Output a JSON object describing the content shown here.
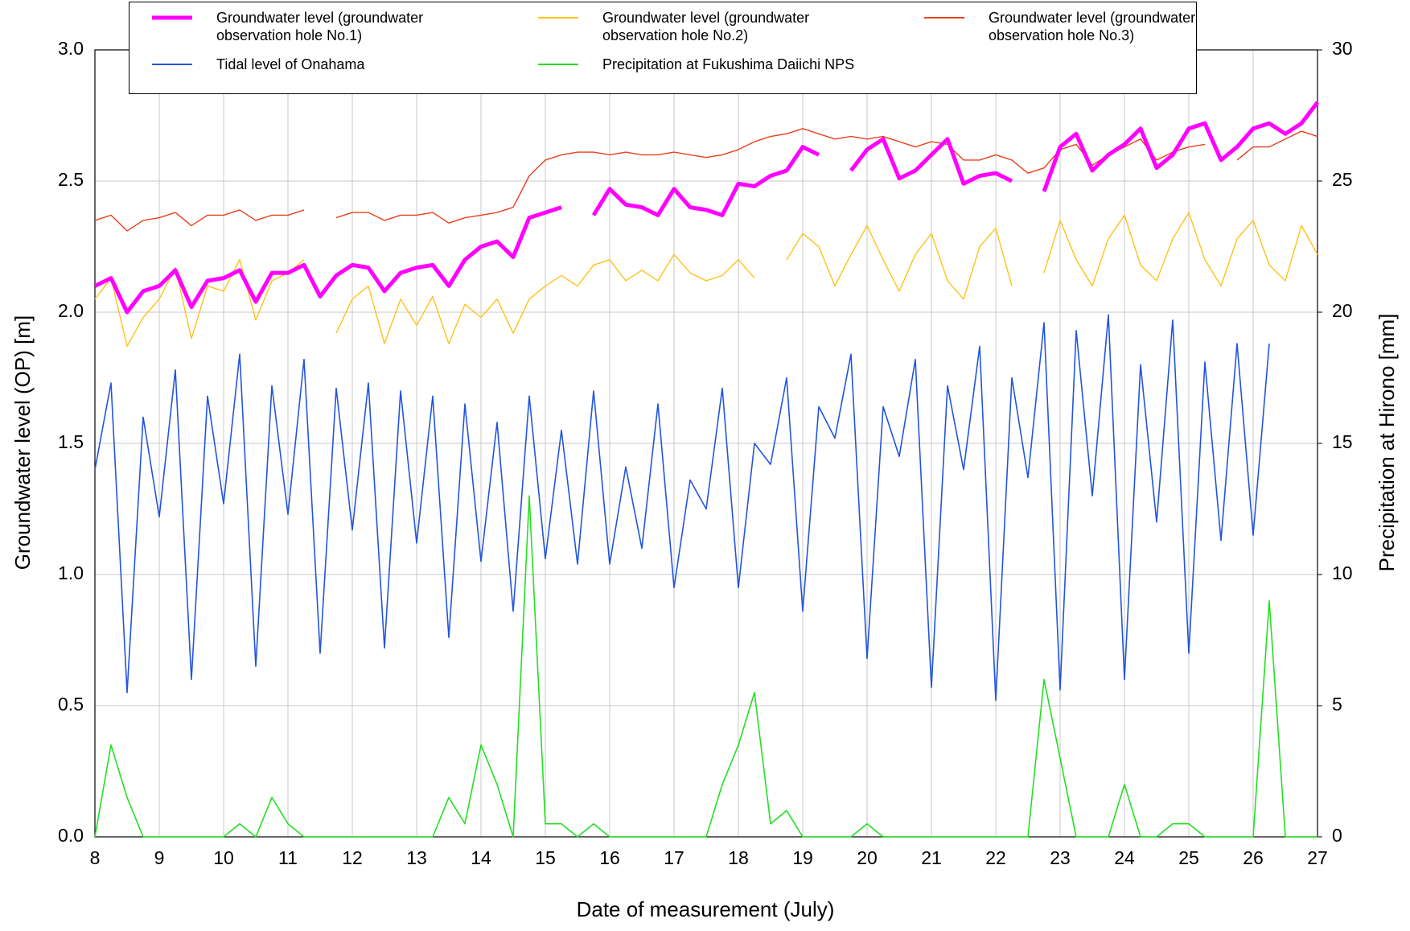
{
  "chart_data": {
    "type": "line",
    "x_label": "Date of measurement (July)",
    "y_label": "Groundwater level (OP) [m]",
    "y2_label": "Precipitation at Hirono [mm]",
    "xlim": [
      8,
      27
    ],
    "xticks": [
      8,
      9,
      10,
      11,
      12,
      13,
      14,
      15,
      16,
      17,
      18,
      19,
      20,
      21,
      22,
      23,
      24,
      25,
      26,
      27
    ],
    "ylim": [
      0,
      3
    ],
    "yticks": [
      {
        "value": 0,
        "label": "0.0"
      },
      0.5,
      {
        "value": 1,
        "label": "1.0"
      },
      1.5,
      {
        "value": 2,
        "label": "2.0"
      },
      2.5,
      {
        "value": 3,
        "label": "3.0"
      }
    ],
    "y2lim": [
      0,
      30
    ],
    "y2ticks": [
      0,
      5,
      10,
      15,
      20,
      25,
      30
    ],
    "grid": true,
    "x": [
      8,
      8.25,
      8.5,
      8.75,
      9,
      9.25,
      9.5,
      9.75,
      10,
      10.25,
      10.5,
      10.75,
      11,
      11.25,
      11.5,
      11.75,
      12,
      12.25,
      12.5,
      12.75,
      13,
      13.25,
      13.5,
      13.75,
      14,
      14.25,
      14.5,
      14.75,
      15,
      15.25,
      15.5,
      15.75,
      16,
      16.25,
      16.5,
      16.75,
      17,
      17.25,
      17.5,
      17.75,
      18,
      18.25,
      18.5,
      18.75,
      19,
      19.25,
      19.5,
      19.75,
      20,
      20.25,
      20.5,
      20.75,
      21,
      21.25,
      21.5,
      21.75,
      22,
      22.25,
      22.5,
      22.75,
      23,
      23.25,
      23.5,
      23.75,
      24,
      24.25,
      24.5,
      24.75,
      25,
      25.25,
      25.5,
      25.75,
      26,
      26.25,
      26.5,
      26.75,
      27
    ],
    "series": [
      {
        "name": "Groundwater level (groundwater observation hole No.1)",
        "color": "#ff00ff",
        "width": 5,
        "values": [
          2.1,
          2.13,
          2.0,
          2.08,
          2.1,
          2.16,
          2.02,
          2.12,
          2.13,
          2.16,
          2.04,
          2.15,
          2.15,
          2.18,
          2.06,
          2.14,
          2.18,
          2.17,
          2.08,
          2.15,
          2.17,
          2.18,
          2.1,
          2.2,
          2.25,
          2.27,
          2.21,
          2.36,
          2.38,
          2.4,
          null,
          2.37,
          2.47,
          2.41,
          2.4,
          2.37,
          2.47,
          2.4,
          2.39,
          2.37,
          2.49,
          2.48,
          2.52,
          2.54,
          2.63,
          2.6,
          null,
          2.54,
          2.62,
          2.66,
          2.51,
          2.54,
          2.6,
          2.66,
          2.49,
          2.52,
          2.53,
          2.5,
          null,
          2.46,
          2.63,
          2.68,
          2.54,
          2.6,
          2.64,
          2.7,
          2.55,
          2.6,
          2.7,
          2.72,
          2.58,
          2.63,
          2.7,
          2.72,
          2.68,
          2.72,
          2.8
        ]
      },
      {
        "name": "Groundwater level (groundwater observation hole No.2)",
        "color": "#ffc21a",
        "width": 1.4,
        "values": [
          2.05,
          2.13,
          1.87,
          1.98,
          2.05,
          2.17,
          1.9,
          2.1,
          2.08,
          2.2,
          1.97,
          2.12,
          2.15,
          2.2,
          null,
          1.92,
          2.05,
          2.1,
          1.88,
          2.05,
          1.95,
          2.06,
          1.88,
          2.03,
          1.98,
          2.05,
          1.92,
          2.05,
          2.1,
          2.14,
          2.1,
          2.18,
          2.2,
          2.12,
          2.16,
          2.12,
          2.22,
          2.15,
          2.12,
          2.14,
          2.2,
          2.13,
          null,
          2.2,
          2.3,
          2.25,
          2.1,
          2.22,
          2.33,
          2.2,
          2.08,
          2.22,
          2.3,
          2.12,
          2.05,
          2.25,
          2.32,
          2.1,
          null,
          2.15,
          2.35,
          2.2,
          2.1,
          2.28,
          2.37,
          2.18,
          2.12,
          2.28,
          2.38,
          2.2,
          2.1,
          2.28,
          2.35,
          2.18,
          2.12,
          2.33,
          2.22
        ]
      },
      {
        "name": "Groundwater level (groundwater observation hole No.3)",
        "color": "#e8401c",
        "width": 1.4,
        "values": [
          2.35,
          2.37,
          2.31,
          2.35,
          2.36,
          2.38,
          2.33,
          2.37,
          2.37,
          2.39,
          2.35,
          2.37,
          2.37,
          2.39,
          null,
          2.36,
          2.38,
          2.38,
          2.35,
          2.37,
          2.37,
          2.38,
          2.34,
          2.36,
          2.37,
          2.38,
          2.4,
          2.52,
          2.58,
          2.6,
          2.61,
          2.61,
          2.6,
          2.61,
          2.6,
          2.6,
          2.61,
          2.6,
          2.59,
          2.6,
          2.62,
          2.65,
          2.67,
          2.68,
          2.7,
          2.68,
          2.66,
          2.67,
          2.66,
          2.67,
          2.65,
          2.63,
          2.65,
          2.64,
          2.58,
          2.58,
          2.6,
          2.58,
          2.53,
          2.55,
          2.62,
          2.64,
          2.56,
          2.6,
          2.63,
          2.66,
          2.58,
          2.61,
          2.63,
          2.64,
          null,
          2.58,
          2.63,
          2.63,
          2.66,
          2.69,
          2.67
        ]
      },
      {
        "name": "Tidal level of Onahama",
        "color": "#2255dd",
        "width": 1.6,
        "values": [
          1.4,
          1.73,
          0.55,
          1.6,
          1.22,
          1.78,
          0.6,
          1.68,
          1.27,
          1.84,
          0.65,
          1.72,
          1.23,
          1.82,
          0.7,
          1.71,
          1.17,
          1.73,
          0.72,
          1.7,
          1.12,
          1.68,
          0.76,
          1.65,
          1.05,
          1.58,
          0.86,
          1.68,
          1.06,
          1.55,
          1.04,
          1.7,
          1.04,
          1.41,
          1.1,
          1.65,
          0.95,
          1.36,
          1.25,
          1.71,
          0.95,
          1.5,
          1.42,
          1.75,
          0.86,
          1.64,
          1.52,
          1.84,
          0.68,
          1.64,
          1.45,
          1.82,
          0.57,
          1.72,
          1.4,
          1.87,
          0.52,
          1.75,
          1.37,
          1.96,
          0.56,
          1.93,
          1.3,
          1.99,
          0.6,
          1.8,
          1.2,
          1.97,
          0.7,
          1.81,
          1.13,
          1.88,
          1.15,
          1.88,
          null,
          null,
          null
        ]
      },
      {
        "name": "Precipitation at Fukushima Daiichi NPS",
        "color": "#22e022",
        "width": 1.6,
        "axis": "y2",
        "values": [
          0,
          3.5,
          1.5,
          0,
          0,
          0,
          0,
          0,
          0,
          0.5,
          0,
          1.5,
          0.5,
          0,
          0,
          0,
          0,
          0,
          0,
          0,
          0,
          0,
          1.5,
          0.5,
          3.5,
          2,
          0,
          13,
          0.5,
          0.5,
          0,
          0.5,
          0,
          0,
          0,
          0,
          0,
          0,
          0,
          2,
          3.5,
          5.5,
          0.5,
          1,
          0,
          0,
          0,
          0,
          0.5,
          0,
          0,
          0,
          0,
          0,
          0,
          0,
          0,
          0,
          0,
          6,
          3,
          0,
          0,
          0,
          2,
          0,
          0,
          0.5,
          0.5,
          0,
          0,
          0,
          0,
          9,
          0,
          0,
          0
        ]
      }
    ]
  }
}
